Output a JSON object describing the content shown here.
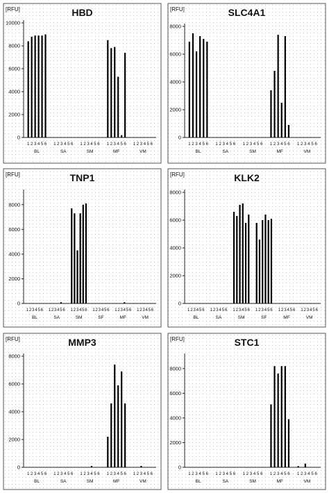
{
  "chart_data": [
    {
      "type": "bar",
      "title": "HBD",
      "unit_label": "[RFU]",
      "ylim": [
        0,
        10000
      ],
      "yticks": [
        0,
        2000,
        4000,
        6000,
        8000,
        10000
      ],
      "groups": [
        "BL",
        "SA",
        "SM",
        "MF",
        "VM"
      ],
      "sublabels": [
        "1",
        "2",
        "3",
        "4",
        "5",
        "6"
      ],
      "values": [
        [
          8400,
          8800,
          8900,
          8900,
          8900,
          9000
        ],
        [
          0,
          0,
          0,
          0,
          0,
          0
        ],
        [
          0,
          0,
          0,
          0,
          0,
          0
        ],
        [
          8500,
          7800,
          7900,
          5300,
          200,
          7400
        ],
        [
          0,
          0,
          0,
          0,
          0,
          0
        ]
      ]
    },
    {
      "type": "bar",
      "title": "SLC4A1",
      "unit_label": "[RFU]",
      "ylim": [
        0,
        8000
      ],
      "yticks": [
        0,
        2000,
        4000,
        6000,
        8000
      ],
      "groups": [
        "BL",
        "SA",
        "SM",
        "MF",
        "VM"
      ],
      "sublabels": [
        "1",
        "2",
        "3",
        "4",
        "5",
        "6"
      ],
      "values": [
        [
          6900,
          7500,
          6200,
          7300,
          7100,
          6900
        ],
        [
          0,
          0,
          0,
          0,
          0,
          0
        ],
        [
          0,
          0,
          0,
          0,
          0,
          0
        ],
        [
          3400,
          4800,
          7400,
          2500,
          7300,
          900
        ],
        [
          0,
          0,
          0,
          0,
          0,
          0
        ]
      ]
    },
    {
      "type": "bar",
      "title": "TNP1",
      "unit_label": "[RFU]",
      "ylim": [
        0,
        9000
      ],
      "yticks": [
        0,
        2000,
        4000,
        6000,
        8000
      ],
      "groups": [
        "BL",
        "SA",
        "SM",
        "SF",
        "MF",
        "VM"
      ],
      "sublabels": [
        "1",
        "2",
        "3",
        "4",
        "5",
        "6"
      ],
      "values": [
        [
          0,
          0,
          0,
          0,
          0,
          0
        ],
        [
          0,
          0,
          0,
          0,
          100,
          0
        ],
        [
          7700,
          7300,
          4300,
          7300,
          8000,
          8100
        ],
        [
          0,
          0,
          0,
          0,
          0,
          0
        ],
        [
          0,
          0,
          0,
          100,
          0,
          0
        ],
        [
          0,
          0,
          0,
          0,
          0,
          0
        ]
      ]
    },
    {
      "type": "bar",
      "title": "KLK2",
      "unit_label": "[RFU]",
      "ylim": [
        0,
        8000
      ],
      "yticks": [
        0,
        2000,
        4000,
        6000,
        8000
      ],
      "groups": [
        "BL",
        "SA",
        "SM",
        "SF",
        "MF",
        "VM"
      ],
      "sublabels": [
        "1",
        "2",
        "3",
        "4",
        "5",
        "6"
      ],
      "values": [
        [
          0,
          0,
          0,
          0,
          0,
          0
        ],
        [
          0,
          0,
          0,
          0,
          0,
          0
        ],
        [
          6600,
          6300,
          7100,
          7200,
          5800,
          6400
        ],
        [
          5800,
          4600,
          6000,
          6400,
          6000,
          6100
        ],
        [
          0,
          0,
          0,
          0,
          0,
          0
        ],
        [
          0,
          0,
          0,
          0,
          0,
          0
        ]
      ]
    },
    {
      "type": "bar",
      "title": "MMP3",
      "unit_label": "[RFU]",
      "ylim": [
        0,
        8000
      ],
      "yticks": [
        0,
        2000,
        4000,
        6000,
        8000
      ],
      "groups": [
        "BL",
        "SA",
        "SM",
        "MF",
        "VM"
      ],
      "sublabels": [
        "1",
        "2",
        "3",
        "4",
        "5",
        "6"
      ],
      "values": [
        [
          0,
          0,
          0,
          0,
          0,
          0
        ],
        [
          0,
          0,
          0,
          0,
          0,
          0
        ],
        [
          0,
          0,
          0,
          100,
          0,
          0
        ],
        [
          2200,
          4600,
          7400,
          5900,
          6900,
          4600
        ],
        [
          0,
          0,
          100,
          0,
          0,
          0
        ]
      ]
    },
    {
      "type": "bar",
      "title": "STC1",
      "unit_label": "[RFU]",
      "ylim": [
        0,
        9000
      ],
      "yticks": [
        0,
        2000,
        4000,
        6000,
        8000
      ],
      "groups": [
        "BL",
        "SA",
        "SM",
        "MF",
        "VM"
      ],
      "sublabels": [
        "1",
        "2",
        "3",
        "4",
        "5",
        "6"
      ],
      "values": [
        [
          0,
          0,
          0,
          0,
          0,
          0
        ],
        [
          0,
          0,
          0,
          0,
          0,
          0
        ],
        [
          0,
          0,
          0,
          0,
          0,
          0
        ],
        [
          5100,
          8200,
          7600,
          8200,
          8200,
          3900
        ],
        [
          100,
          0,
          300,
          0,
          0,
          0
        ]
      ]
    }
  ]
}
